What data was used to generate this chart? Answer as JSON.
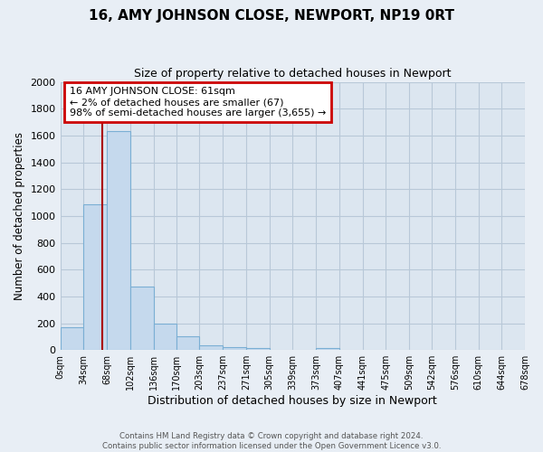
{
  "title": "16, AMY JOHNSON CLOSE, NEWPORT, NP19 0RT",
  "subtitle": "Size of property relative to detached houses in Newport",
  "xlabel": "Distribution of detached houses by size in Newport",
  "ylabel": "Number of detached properties",
  "bar_color": "#c5d9ed",
  "bar_edge_color": "#7bafd4",
  "vline_color": "#aa0000",
  "vline_x": 61,
  "annotation_text": "16 AMY JOHNSON CLOSE: 61sqm\n← 2% of detached houses are smaller (67)\n98% of semi-detached houses are larger (3,655) →",
  "annotation_box_color": "#ffffff",
  "annotation_box_edge": "#cc0000",
  "bin_edges": [
    0,
    34,
    68,
    102,
    136,
    170,
    203,
    237,
    271,
    305,
    339,
    373,
    407,
    441,
    475,
    509,
    542,
    576,
    610,
    644,
    678
  ],
  "bar_heights": [
    170,
    1090,
    1630,
    470,
    200,
    100,
    35,
    20,
    15,
    0,
    0,
    15,
    0,
    0,
    0,
    0,
    0,
    0,
    0,
    0
  ],
  "ylim": [
    0,
    2000
  ],
  "yticks": [
    0,
    200,
    400,
    600,
    800,
    1000,
    1200,
    1400,
    1600,
    1800,
    2000
  ],
  "xtick_labels": [
    "0sqm",
    "34sqm",
    "68sqm",
    "102sqm",
    "136sqm",
    "170sqm",
    "203sqm",
    "237sqm",
    "271sqm",
    "305sqm",
    "339sqm",
    "373sqm",
    "407sqm",
    "441sqm",
    "475sqm",
    "509sqm",
    "542sqm",
    "576sqm",
    "610sqm",
    "644sqm",
    "678sqm"
  ],
  "footer_line1": "Contains HM Land Registry data © Crown copyright and database right 2024.",
  "footer_line2": "Contains public sector information licensed under the Open Government Licence v3.0.",
  "background_color": "#e8eef5",
  "plot_bg_color": "#dce6f0",
  "grid_color": "#b8c8d8"
}
